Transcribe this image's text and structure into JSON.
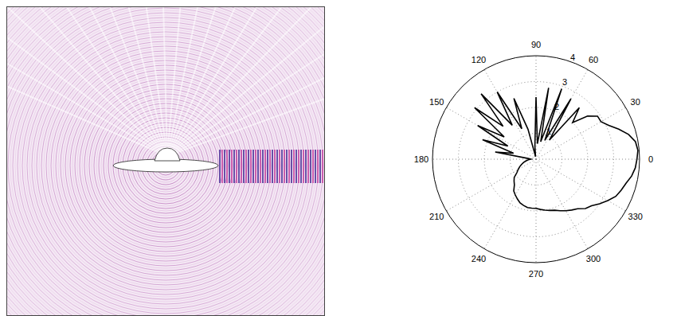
{
  "chart_data": {
    "type": "polar_line",
    "x": [
      0,
      5,
      10,
      15,
      20,
      25,
      30,
      35,
      40,
      45,
      50,
      55,
      60,
      65,
      70,
      75,
      80,
      85,
      90,
      95,
      100,
      105,
      110,
      115,
      120,
      125,
      130,
      135,
      140,
      145,
      150,
      155,
      160,
      165,
      170,
      175,
      180,
      185,
      190,
      195,
      200,
      205,
      210,
      215,
      220,
      225,
      230,
      235,
      240,
      245,
      250,
      255,
      260,
      265,
      270,
      275,
      280,
      285,
      290,
      295,
      300,
      305,
      310,
      315,
      320,
      325,
      330,
      335,
      340,
      345,
      350,
      355
    ],
    "values": [
      3.95,
      3.9,
      3.7,
      3.4,
      3.1,
      2.9,
      2.9,
      2.6,
      2.0,
      2.6,
      0.9,
      2.7,
      0.8,
      2.9,
      0.7,
      2.8,
      0.6,
      2.4,
      0.5,
      0.1,
      1.2,
      2.5,
      1.3,
      3.0,
      1.6,
      3.3,
      1.8,
      3.1,
      1.5,
      2.6,
      1.2,
      2.2,
      0.9,
      1.6,
      0.3,
      0.2,
      0.3,
      0.4,
      0.5,
      0.6,
      0.7,
      0.8,
      0.9,
      1.1,
      1.2,
      1.3,
      1.5,
      1.6,
      1.7,
      1.8,
      1.85,
      1.9,
      1.9,
      1.9,
      1.95,
      2.0,
      2.05,
      2.1,
      2.2,
      2.3,
      2.4,
      2.5,
      2.7,
      2.8,
      3.0,
      3.2,
      3.4,
      3.5,
      3.6,
      3.75,
      3.85,
      3.9
    ],
    "xlim": [
      0,
      360
    ],
    "xticks": [
      0,
      30,
      60,
      90,
      120,
      150,
      180,
      210,
      240,
      270,
      300,
      330
    ],
    "ylim": [
      0,
      4
    ],
    "yticks": [
      1,
      2,
      3,
      4
    ],
    "grid": true,
    "color": "#000000"
  }
}
